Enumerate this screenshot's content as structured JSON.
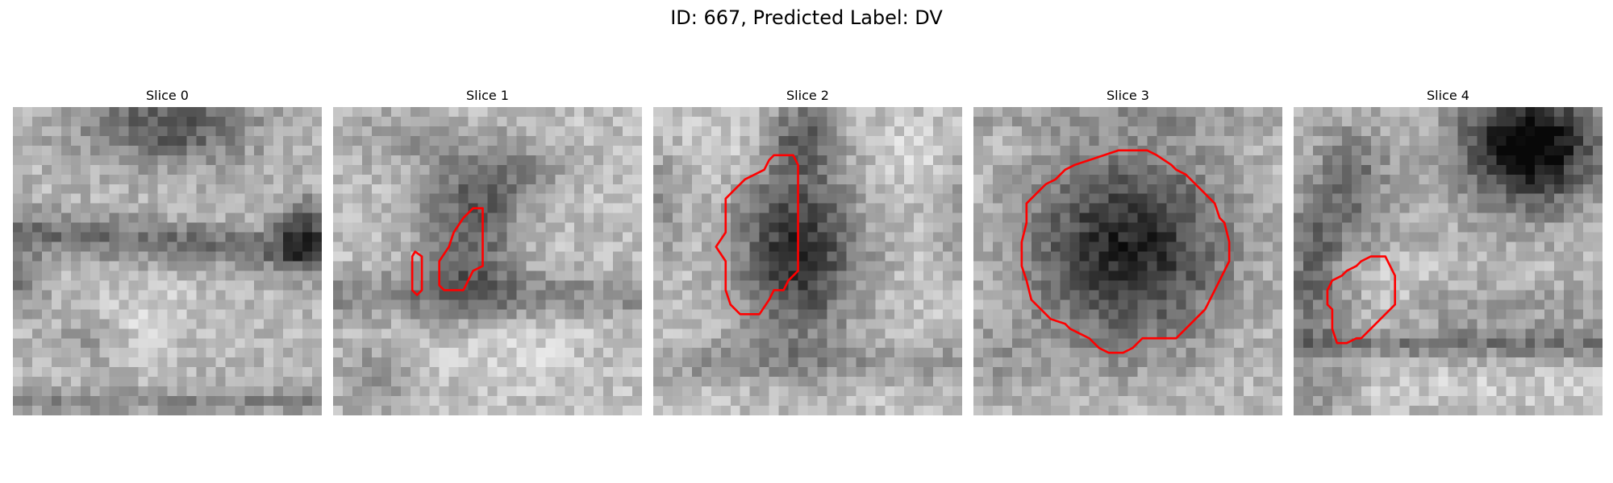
{
  "figure": {
    "title": "ID: 667, Predicted Label: DV"
  },
  "slices": [
    {
      "title": "Slice 0"
    },
    {
      "title": "Slice 1"
    },
    {
      "title": "Slice 2"
    },
    {
      "title": "Slice 3"
    },
    {
      "title": "Slice 4"
    }
  ],
  "colors": {
    "contour": "#ff0000",
    "background": "#ffffff"
  }
}
